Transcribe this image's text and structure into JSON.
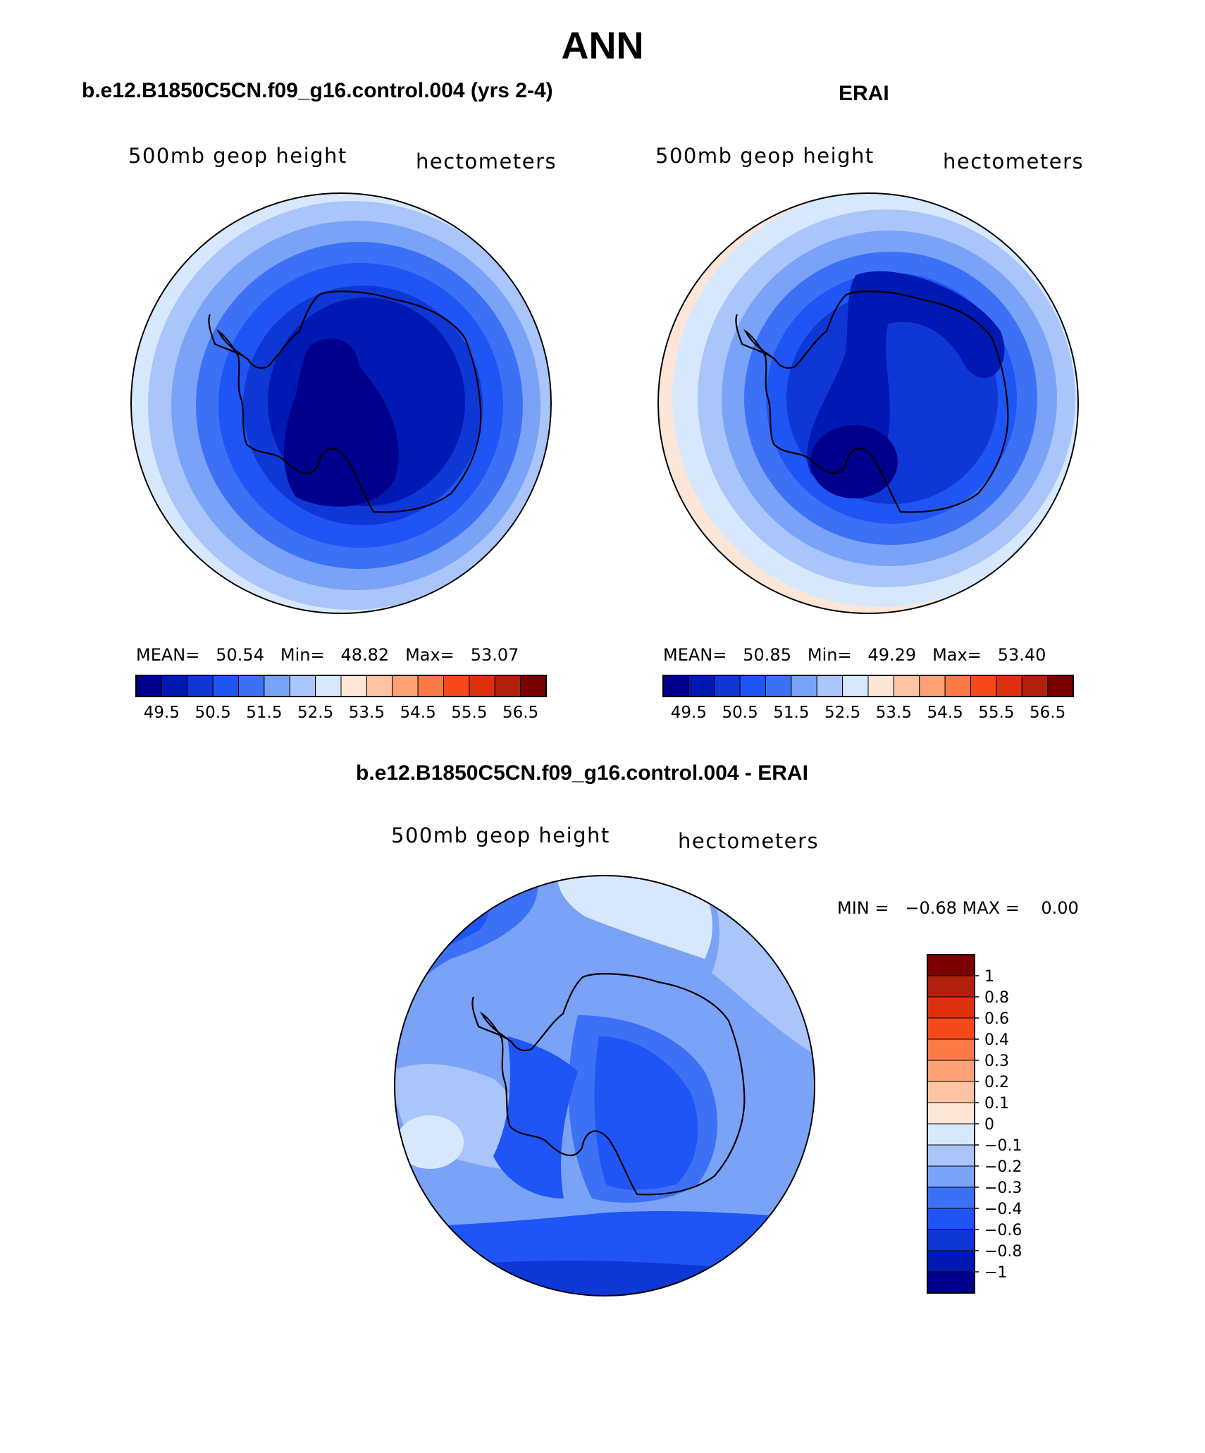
{
  "title": "ANN",
  "panels": [
    {
      "case_title": "b.e12.B1850C5CN.f09_g16.control.004 (yrs 2-4)",
      "var_label": "500mb  geop  height",
      "units_label": "hectometers",
      "stats": {
        "mean_label": "MEAN=",
        "mean": "50.54",
        "min_label": "Min=",
        "min": "48.82",
        "max_label": "Max=",
        "max": "53.07"
      }
    },
    {
      "case_title": "ERAI",
      "var_label": "500mb  geop  height",
      "units_label": "hectometers",
      "stats": {
        "mean_label": "MEAN=",
        "mean": "50.85",
        "min_label": "Min=",
        "min": "49.29",
        "max_label": "Max=",
        "max": "53.40"
      }
    }
  ],
  "abs_colorbar": {
    "colors": [
      "#00008c",
      "#0019b3",
      "#0f37d6",
      "#1f55f5",
      "#3d71f5",
      "#7aa3f7",
      "#a9c5fa",
      "#d8e8fc",
      "#fde6d7",
      "#fcc4a3",
      "#fca276",
      "#fb7a47",
      "#f7481c",
      "#de300f",
      "#b0200c",
      "#7d0000"
    ],
    "labels": [
      "49.5",
      "50.5",
      "51.5",
      "52.5",
      "53.5",
      "54.5",
      "55.5",
      "56.5"
    ]
  },
  "diff": {
    "title": "b.e12.B1850C5CN.f09_g16.control.004 - ERAI",
    "var_label": "500mb  geop  height",
    "units_label": "hectometers",
    "minmax_text": "MIN =   −0.68 MAX =    0.00"
  },
  "diff_colorbar": {
    "colors_top_to_bottom": [
      "#7d0000",
      "#b0200c",
      "#de300f",
      "#f7481c",
      "#fb7a47",
      "#fca276",
      "#fcc4a3",
      "#fde6d7",
      "#d8e8fc",
      "#a9c5fa",
      "#7aa3f7",
      "#3d71f5",
      "#1f55f5",
      "#0f37d6",
      "#0019b3",
      "#00008c"
    ],
    "labels": [
      "1",
      "0.8",
      "0.6",
      "0.4",
      "0.3",
      "0.2",
      "0.1",
      "0",
      "−0.1",
      "−0.2",
      "−0.3",
      "−0.4",
      "−0.6",
      "−0.8",
      "−1"
    ]
  }
}
